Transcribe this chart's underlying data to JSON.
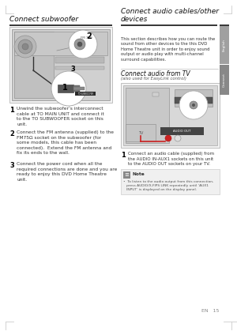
{
  "bg_color": "#ffffff",
  "title_left": "Connect subwoofer",
  "title_right": "Connect audio cables/other\ndevices",
  "section_right_sub": "Connect audio from TV",
  "section_right_sub2": "(also used for EasyLink control)",
  "desc_right": "This section describes how you can route the\nsound from other devices to the this DVD\nHome Theatre unit in order to enjoy sound\noutput or audio play with multi-channel\nsurround capabilities.",
  "steps_left": [
    [
      "Unwind the subwoofer’s interconnect\ncable at ",
      "TO MAIN UNIT",
      " and connect it\nto the ",
      "TO SUBWOOFER",
      " socket on this\nunit."
    ],
    [
      "Connect the FM antenna (supplied) to the\n",
      "FM75Ω",
      " socket on the subwoofer (for\nsome models, this cable has been\nconnected).  Extend the FM antenna and\nfix its ends to the wall."
    ],
    [
      "Connect the power cord when all the\nrequired connections are done and you are\nready to enjoy this DVD Home Theatre\nunit."
    ]
  ],
  "step_right_1_parts": [
    "Connect an audio cable (supplied) from\nthe ",
    "AUDIO IN-AUX1",
    " sockets on this unit\nto the ",
    "AUDIO OUT",
    " sockets on your TV."
  ],
  "note_title": "Note",
  "note_text": "•  To listen to the audio output from this connection,\n   press AUDIO/X-FIPS LINK repeatedly until ‘AUX1\n   INPUT’ is displayed on the display panel.",
  "page_num": "EN   15",
  "bar_color": "#3a3a3a",
  "side_tab_english_color": "#aaaaaa",
  "side_tab_connect_color": "#888888",
  "corner_color": "#cccccc",
  "text_color": "#333333",
  "title_color": "#111111",
  "diagram_bg": "#e8e8e8",
  "diagram_border": "#aaaaaa",
  "note_bg": "#f0f0f0",
  "note_border": "#cccccc"
}
